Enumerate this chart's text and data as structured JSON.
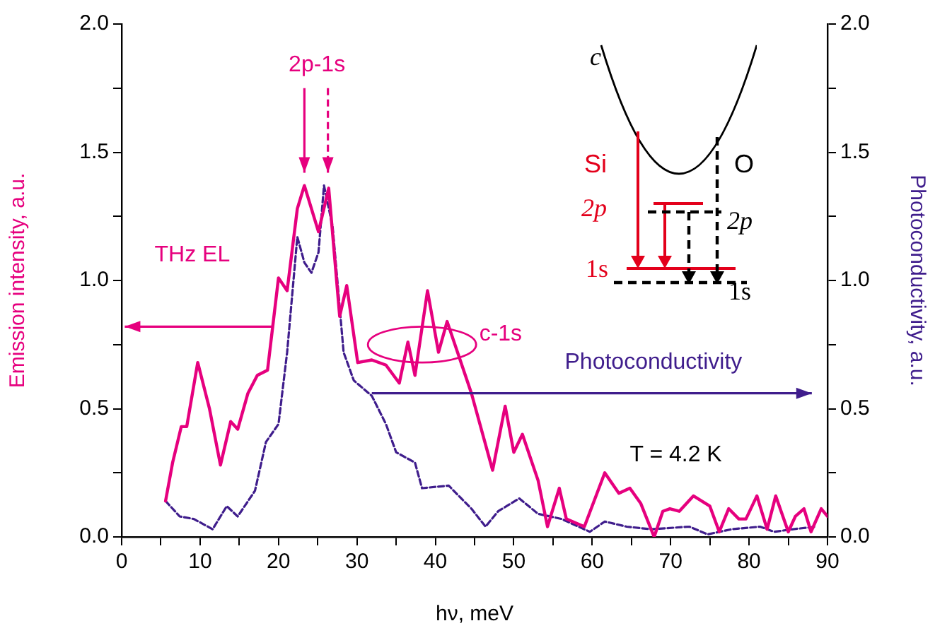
{
  "chart_data": {
    "type": "line",
    "xlabel": "hν, meV",
    "ylabel": "Emission intensity, a.u.",
    "y2label": "Photoconductivity, a.u.",
    "xlim": [
      0,
      90
    ],
    "xticks": [
      0,
      {
        "value": 5,
        "label": null
      },
      10,
      {
        "value": 15,
        "label": null
      },
      20,
      {
        "value": 25,
        "label": null
      },
      30,
      {
        "value": 35,
        "label": null
      },
      40,
      {
        "value": 45,
        "label": null
      },
      50,
      {
        "value": 55,
        "label": null
      },
      60,
      {
        "value": 65,
        "label": null
      },
      70,
      {
        "value": 75,
        "label": null
      },
      80,
      {
        "value": 85,
        "label": null
      },
      90
    ],
    "ylim": [
      0,
      2
    ],
    "yticks": [
      {
        "value": 0,
        "label": "0.0"
      },
      {
        "value": 0.25,
        "label": null
      },
      {
        "value": 0.5,
        "label": "0.5"
      },
      {
        "value": 0.75,
        "label": null
      },
      {
        "value": 1,
        "label": "1.0"
      },
      {
        "value": 1.25,
        "label": null
      },
      {
        "value": 1.5,
        "label": "1.5"
      },
      {
        "value": 1.75,
        "label": null
      },
      {
        "value": 2,
        "label": "2.0"
      }
    ],
    "y2lim": [
      0,
      2
    ],
    "y2ticks": [
      {
        "value": 0,
        "label": "0.0"
      },
      {
        "value": 0.25,
        "label": null
      },
      {
        "value": 0.5,
        "label": "0.5"
      },
      {
        "value": 0.75,
        "label": null
      },
      {
        "value": 1,
        "label": "1.0"
      },
      {
        "value": 1.25,
        "label": null
      },
      {
        "value": 1.5,
        "label": "1.5"
      },
      {
        "value": 1.75,
        "label": null
      },
      {
        "value": 2,
        "label": "2.0"
      }
    ],
    "grid": false,
    "legend": false,
    "marker": "none",
    "series": [
      {
        "color": "#e6007e",
        "line_style": "solid",
        "x": [
          5.6,
          6.5,
          7.6,
          8.3,
          9.7,
          11.2,
          12.6,
          13.9,
          14.8,
          16.1,
          17.3,
          18.6,
          20,
          21.1,
          22.4,
          23.3,
          25.1,
          26.4,
          27.8,
          28.7,
          30.1,
          31.9,
          33.7,
          35.4,
          36.5,
          37.4,
          39,
          40.4,
          41.5,
          44.6,
          47.3,
          48.9,
          50,
          51.1,
          53.1,
          54.3,
          55.8,
          56.7,
          59,
          61.6,
          63.4,
          64.8,
          66.2,
          67.9,
          69,
          69.9,
          71.1,
          72.9,
          75,
          76.2,
          77.4,
          78.7,
          79.6,
          81,
          82.3,
          83.4,
          85,
          85.9,
          87,
          87.9,
          89.2,
          90
        ],
        "values": [
          0.14,
          0.29,
          0.43,
          0.43,
          0.68,
          0.5,
          0.28,
          0.45,
          0.42,
          0.56,
          0.63,
          0.65,
          1.01,
          0.96,
          1.28,
          1.37,
          1.19,
          1.36,
          0.86,
          0.98,
          0.68,
          0.69,
          0.67,
          0.6,
          0.76,
          0.63,
          0.96,
          0.72,
          0.84,
          0.56,
          0.26,
          0.51,
          0.33,
          0.4,
          0.22,
          0.04,
          0.19,
          0.07,
          0.04,
          0.25,
          0.17,
          0.19,
          0.13,
          0.0,
          0.1,
          0.11,
          0.1,
          0.16,
          0.12,
          0.02,
          0.11,
          0.07,
          0.07,
          0.16,
          0.03,
          0.16,
          0.02,
          0.08,
          0.11,
          0.02,
          0.11,
          0.08
        ]
      },
      {
        "color": "#3f1d8c",
        "line_style": "dashed",
        "axis": "y2",
        "x": [
          5.6,
          7.4,
          9.2,
          11.6,
          13.4,
          14.8,
          17,
          18.4,
          20,
          21.1,
          22.4,
          23.3,
          24.2,
          25.1,
          25.8,
          26.9,
          28.3,
          29.6,
          31.9,
          33.7,
          35,
          37.4,
          38.3,
          41.7,
          44.6,
          46.4,
          48,
          50.7,
          53.1,
          56.1,
          59.7,
          61.6,
          64.4,
          67.5,
          72.4,
          74.7,
          77.8,
          81.4,
          83.2,
          85.6,
          88.6
        ],
        "values": [
          0.14,
          0.08,
          0.07,
          0.03,
          0.12,
          0.08,
          0.18,
          0.37,
          0.44,
          0.72,
          1.17,
          1.07,
          1.03,
          1.11,
          1.37,
          1.21,
          0.72,
          0.61,
          0.55,
          0.44,
          0.33,
          0.29,
          0.19,
          0.2,
          0.11,
          0.04,
          0.1,
          0.15,
          0.09,
          0.07,
          0.02,
          0.06,
          0.04,
          0.03,
          0.04,
          0.01,
          0.03,
          0.04,
          0.02,
          0.03,
          0.04
        ]
      }
    ],
    "annotations": [
      "2p-1s",
      "THz EL",
      "c-1s",
      "Photoconductivity",
      "T = 4.2 K",
      "c",
      "Si",
      "O",
      "2p",
      "1s",
      "2p",
      "1s"
    ]
  }
}
